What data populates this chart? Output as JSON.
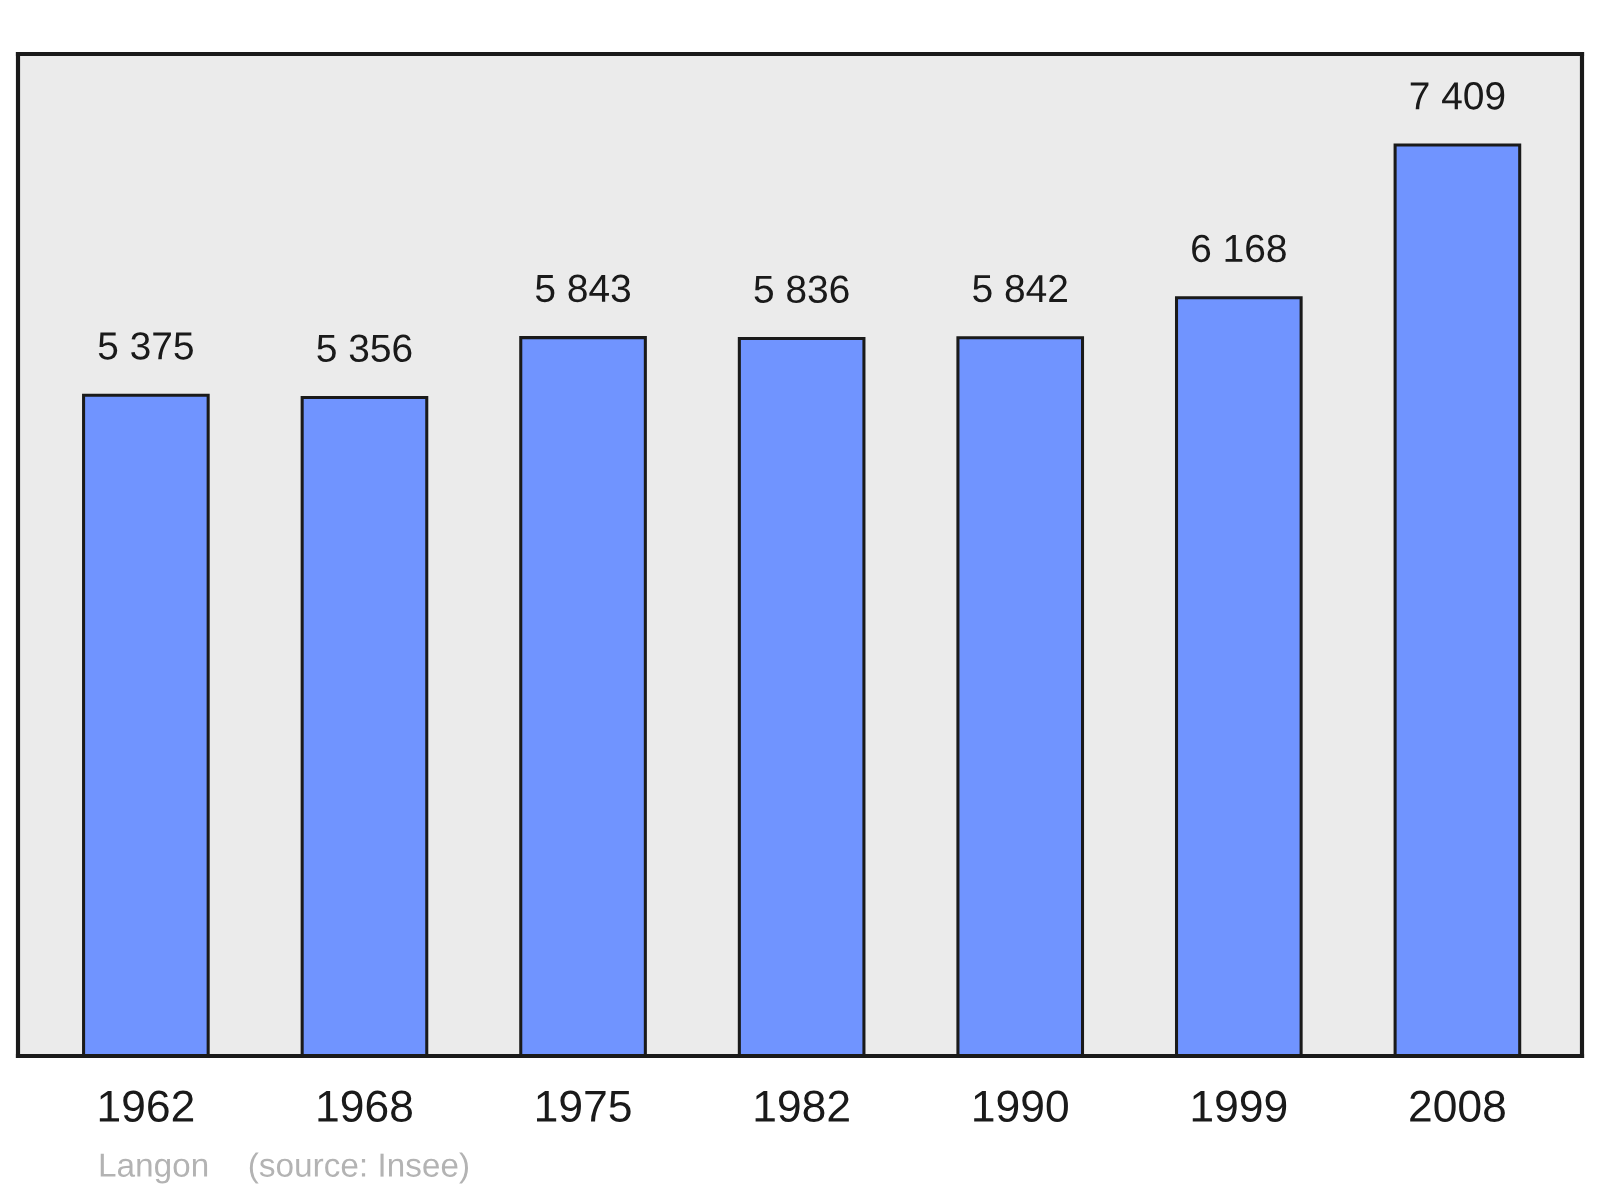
{
  "chart_data": {
    "type": "bar",
    "categories": [
      "1962",
      "1968",
      "1975",
      "1982",
      "1990",
      "1999",
      "2008"
    ],
    "values": [
      5375,
      5356,
      5843,
      5836,
      5842,
      6168,
      7409
    ],
    "value_labels": [
      "5 375",
      "5 356",
      "5 843",
      "5 836",
      "5 842",
      "6 168",
      "7 409"
    ],
    "color": "#7094ff",
    "annotations": [
      "Langon",
      "(source: Insee)"
    ]
  }
}
